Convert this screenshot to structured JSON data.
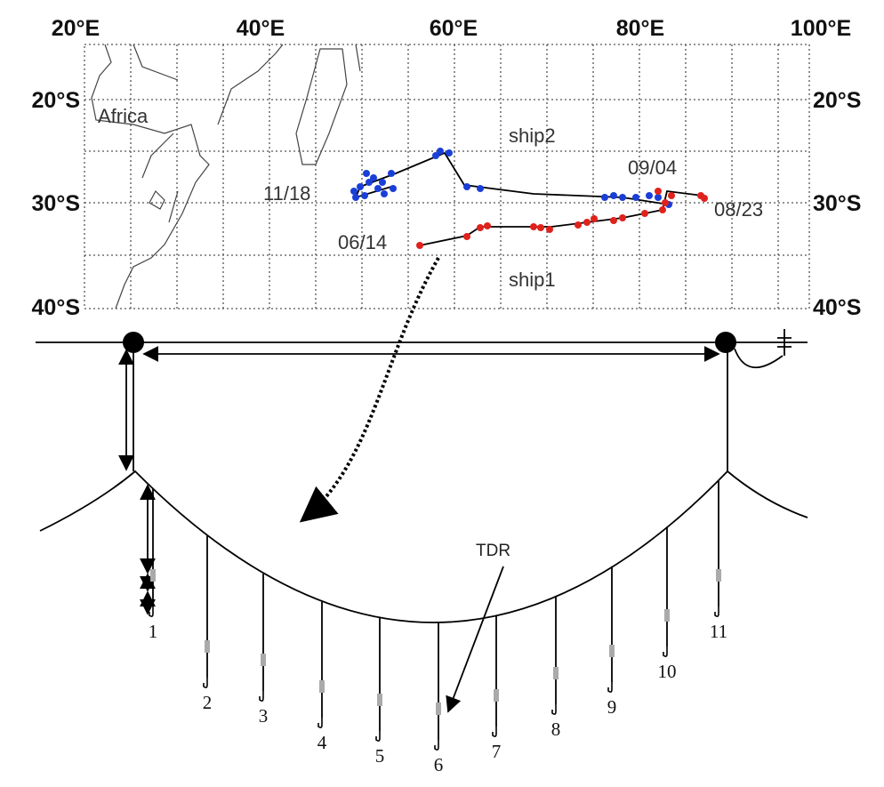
{
  "map": {
    "lon_labels": [
      "20°E",
      "40°E",
      "60°E",
      "80°E",
      "100°E"
    ],
    "lat_labels": [
      "20°S",
      "30°S",
      "40°S"
    ],
    "region_label": "Africa",
    "ship_labels": [
      "ship2",
      "ship1"
    ],
    "date_labels": [
      "11/18",
      "09/04",
      "08/23",
      "06/14"
    ]
  },
  "gear": {
    "sensor_label": "TDR",
    "hook_labels": [
      "1",
      "2",
      "3",
      "4",
      "5",
      "6",
      "7",
      "8",
      "9",
      "10",
      "11"
    ]
  }
}
